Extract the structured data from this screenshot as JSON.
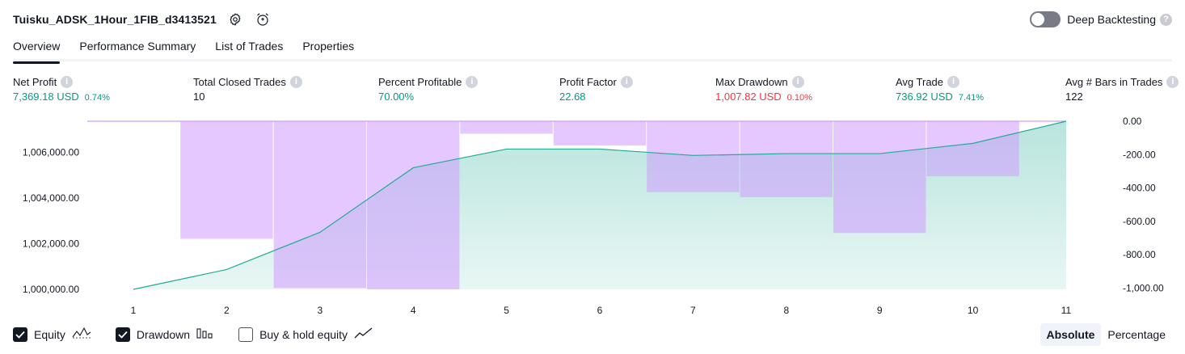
{
  "header": {
    "strategy_name": "Tuisku_ADSK_1Hour_1FIB_d3413521",
    "settings_icon": "settings-icon",
    "alert_icon": "add-alert-icon"
  },
  "deep_backtesting": {
    "label": "Deep Backtesting",
    "enabled": false,
    "help": "?"
  },
  "tabs": [
    {
      "label": "Overview",
      "active": true
    },
    {
      "label": "Performance Summary",
      "active": false
    },
    {
      "label": "List of Trades",
      "active": false
    },
    {
      "label": "Properties",
      "active": false
    }
  ],
  "metrics": {
    "net_profit": {
      "label": "Net Profit",
      "value": "7,369.18 USD",
      "pct": "0.74%"
    },
    "total_closed_trades": {
      "label": "Total Closed Trades",
      "value": "10"
    },
    "percent_profitable": {
      "label": "Percent Profitable",
      "value": "70.00%"
    },
    "profit_factor": {
      "label": "Profit Factor",
      "value": "22.68"
    },
    "max_drawdown": {
      "label": "Max Drawdown",
      "value": "1,007.82 USD",
      "pct": "0.10%"
    },
    "avg_trade": {
      "label": "Avg Trade",
      "value": "736.92 USD",
      "pct": "7.41%"
    },
    "avg_bars": {
      "label": "Avg # Bars in Trades",
      "value": "122"
    }
  },
  "colors": {
    "equity_line": "#22ab94",
    "equity_fill": "#22ab94",
    "drawdown_fill": "#cf9bff",
    "positive": "#089981",
    "negative": "#f23645"
  },
  "chart_data": {
    "type": "area",
    "x": [
      1,
      2,
      3,
      4,
      5,
      6,
      7,
      8,
      9,
      10,
      11
    ],
    "x_tick_labels": [
      "1",
      "2",
      "3",
      "4",
      "5",
      "6",
      "7",
      "8",
      "9",
      "10",
      "11"
    ],
    "series": [
      {
        "name": "Equity",
        "kind": "area",
        "axis": "left",
        "values": [
          1000000,
          1000870,
          1002500,
          1005330,
          1006150,
          1006150,
          1005870,
          1005950,
          1005950,
          1006400,
          1007370
        ]
      },
      {
        "name": "Drawdown",
        "kind": "bar",
        "axis": "right",
        "values": [
          0,
          -705,
          -1000,
          -1007.82,
          -75,
          -145,
          -425,
          -455,
          -670,
          -330,
          0
        ]
      }
    ],
    "left_axis": {
      "ticks": [
        1000000,
        1002000,
        1004000,
        1006000
      ],
      "tick_labels": [
        "1,000,000.00",
        "1,002,000.00",
        "1,004,000.00",
        "1,006,000.00"
      ],
      "ylim": [
        1000000,
        1007370
      ]
    },
    "right_axis": {
      "ticks": [
        0,
        -200,
        -400,
        -600,
        -800,
        -1000
      ],
      "tick_labels": [
        "0.00",
        "-200.00",
        "-400.00",
        "-600.00",
        "-800.00",
        "-1,000.00"
      ],
      "ylim": [
        -1007.82,
        0
      ]
    },
    "grid": false
  },
  "legend": {
    "items": [
      {
        "label": "Equity",
        "checked": true,
        "icon": "equity-line-icon"
      },
      {
        "label": "Drawdown",
        "checked": true,
        "icon": "drawdown-bars-icon"
      },
      {
        "label": "Buy & hold equity",
        "checked": false,
        "icon": "buy-hold-line-icon"
      }
    ]
  },
  "view_toggle": {
    "options": [
      "Absolute",
      "Percentage"
    ],
    "selected": "Absolute"
  }
}
